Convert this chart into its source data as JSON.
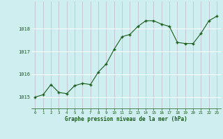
{
  "x": [
    0,
    1,
    2,
    3,
    4,
    5,
    6,
    7,
    8,
    9,
    10,
    11,
    12,
    13,
    14,
    15,
    16,
    17,
    18,
    19,
    20,
    21,
    22,
    23
  ],
  "y": [
    1015.0,
    1015.1,
    1015.55,
    1015.2,
    1015.15,
    1015.5,
    1015.6,
    1015.55,
    1016.1,
    1016.45,
    1017.1,
    1017.65,
    1017.75,
    1018.1,
    1018.35,
    1018.35,
    1018.2,
    1018.1,
    1017.4,
    1017.35,
    1017.35,
    1017.8,
    1018.35,
    1018.55
  ],
  "line_color": "#1a5c1a",
  "marker_color": "#1a5c1a",
  "bg_color": "#ceeef0",
  "vgrid_color": "#c0b8c8",
  "hgrid_color": "#ffffff",
  "xlabel": "Graphe pression niveau de la mer (hPa)",
  "xlabel_color": "#1a5c1a",
  "tick_color": "#1a5c1a",
  "ylim": [
    1014.5,
    1019.2
  ],
  "yticks": [
    1015,
    1016,
    1017,
    1018
  ],
  "xticks": [
    0,
    1,
    2,
    3,
    4,
    5,
    6,
    7,
    8,
    9,
    10,
    11,
    12,
    13,
    14,
    15,
    16,
    17,
    18,
    19,
    20,
    21,
    22,
    23
  ]
}
